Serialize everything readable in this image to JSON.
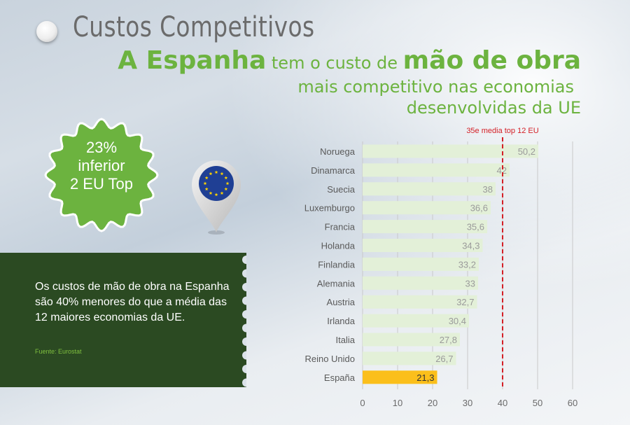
{
  "header": {
    "title": "Custos Competitivos",
    "headline_part1": "A Espanha",
    "headline_part2": " tem o custo de ",
    "headline_part3": "mão de obra",
    "headline_line2": "mais competitivo nas economias",
    "headline_line3": "desenvolvidas da UE"
  },
  "badge": {
    "line1": "23%",
    "line2": "inferior",
    "line3": "2 EU Top",
    "color": "#6cb33f"
  },
  "info_panel": {
    "text": "Os custos de mão de obra na Espanha são 40% menores do que a média das 12 maiores economias da UE.",
    "source": "Fuente: Eurostat",
    "color": "#2b4a22"
  },
  "eu_pin": {
    "icon": "eu-flag-pin-icon"
  },
  "chart_data": {
    "type": "bar",
    "orientation": "horizontal",
    "categories": [
      "Noruega",
      "Dinamarca",
      "Suecia",
      "Luxemburgo",
      "Francia",
      "Holanda",
      "Finlandia",
      "Alemania",
      "Austria",
      "Irlanda",
      "Italia",
      "Reino Unido",
      "España"
    ],
    "values": [
      50.2,
      42,
      38,
      36.6,
      35.6,
      34.3,
      33.2,
      33,
      32.7,
      30.4,
      27.8,
      26.7,
      21.3
    ],
    "data_labels": [
      "50,2",
      "42",
      "38",
      "36,6",
      "35,6",
      "34,3",
      "33,2",
      "33",
      "32,7",
      "30,4",
      "27,8",
      "26,7",
      "21,3"
    ],
    "highlight": "España",
    "bar_color": "#e3f0d8",
    "highlight_color": "#fbbf1b",
    "xlim": [
      0,
      60
    ],
    "xticks": [
      0,
      10,
      20,
      30,
      40,
      50,
      60
    ],
    "grid": true,
    "reference_line": {
      "value": 35,
      "label": "35e media top 12 EU",
      "color": "#d42027"
    }
  }
}
